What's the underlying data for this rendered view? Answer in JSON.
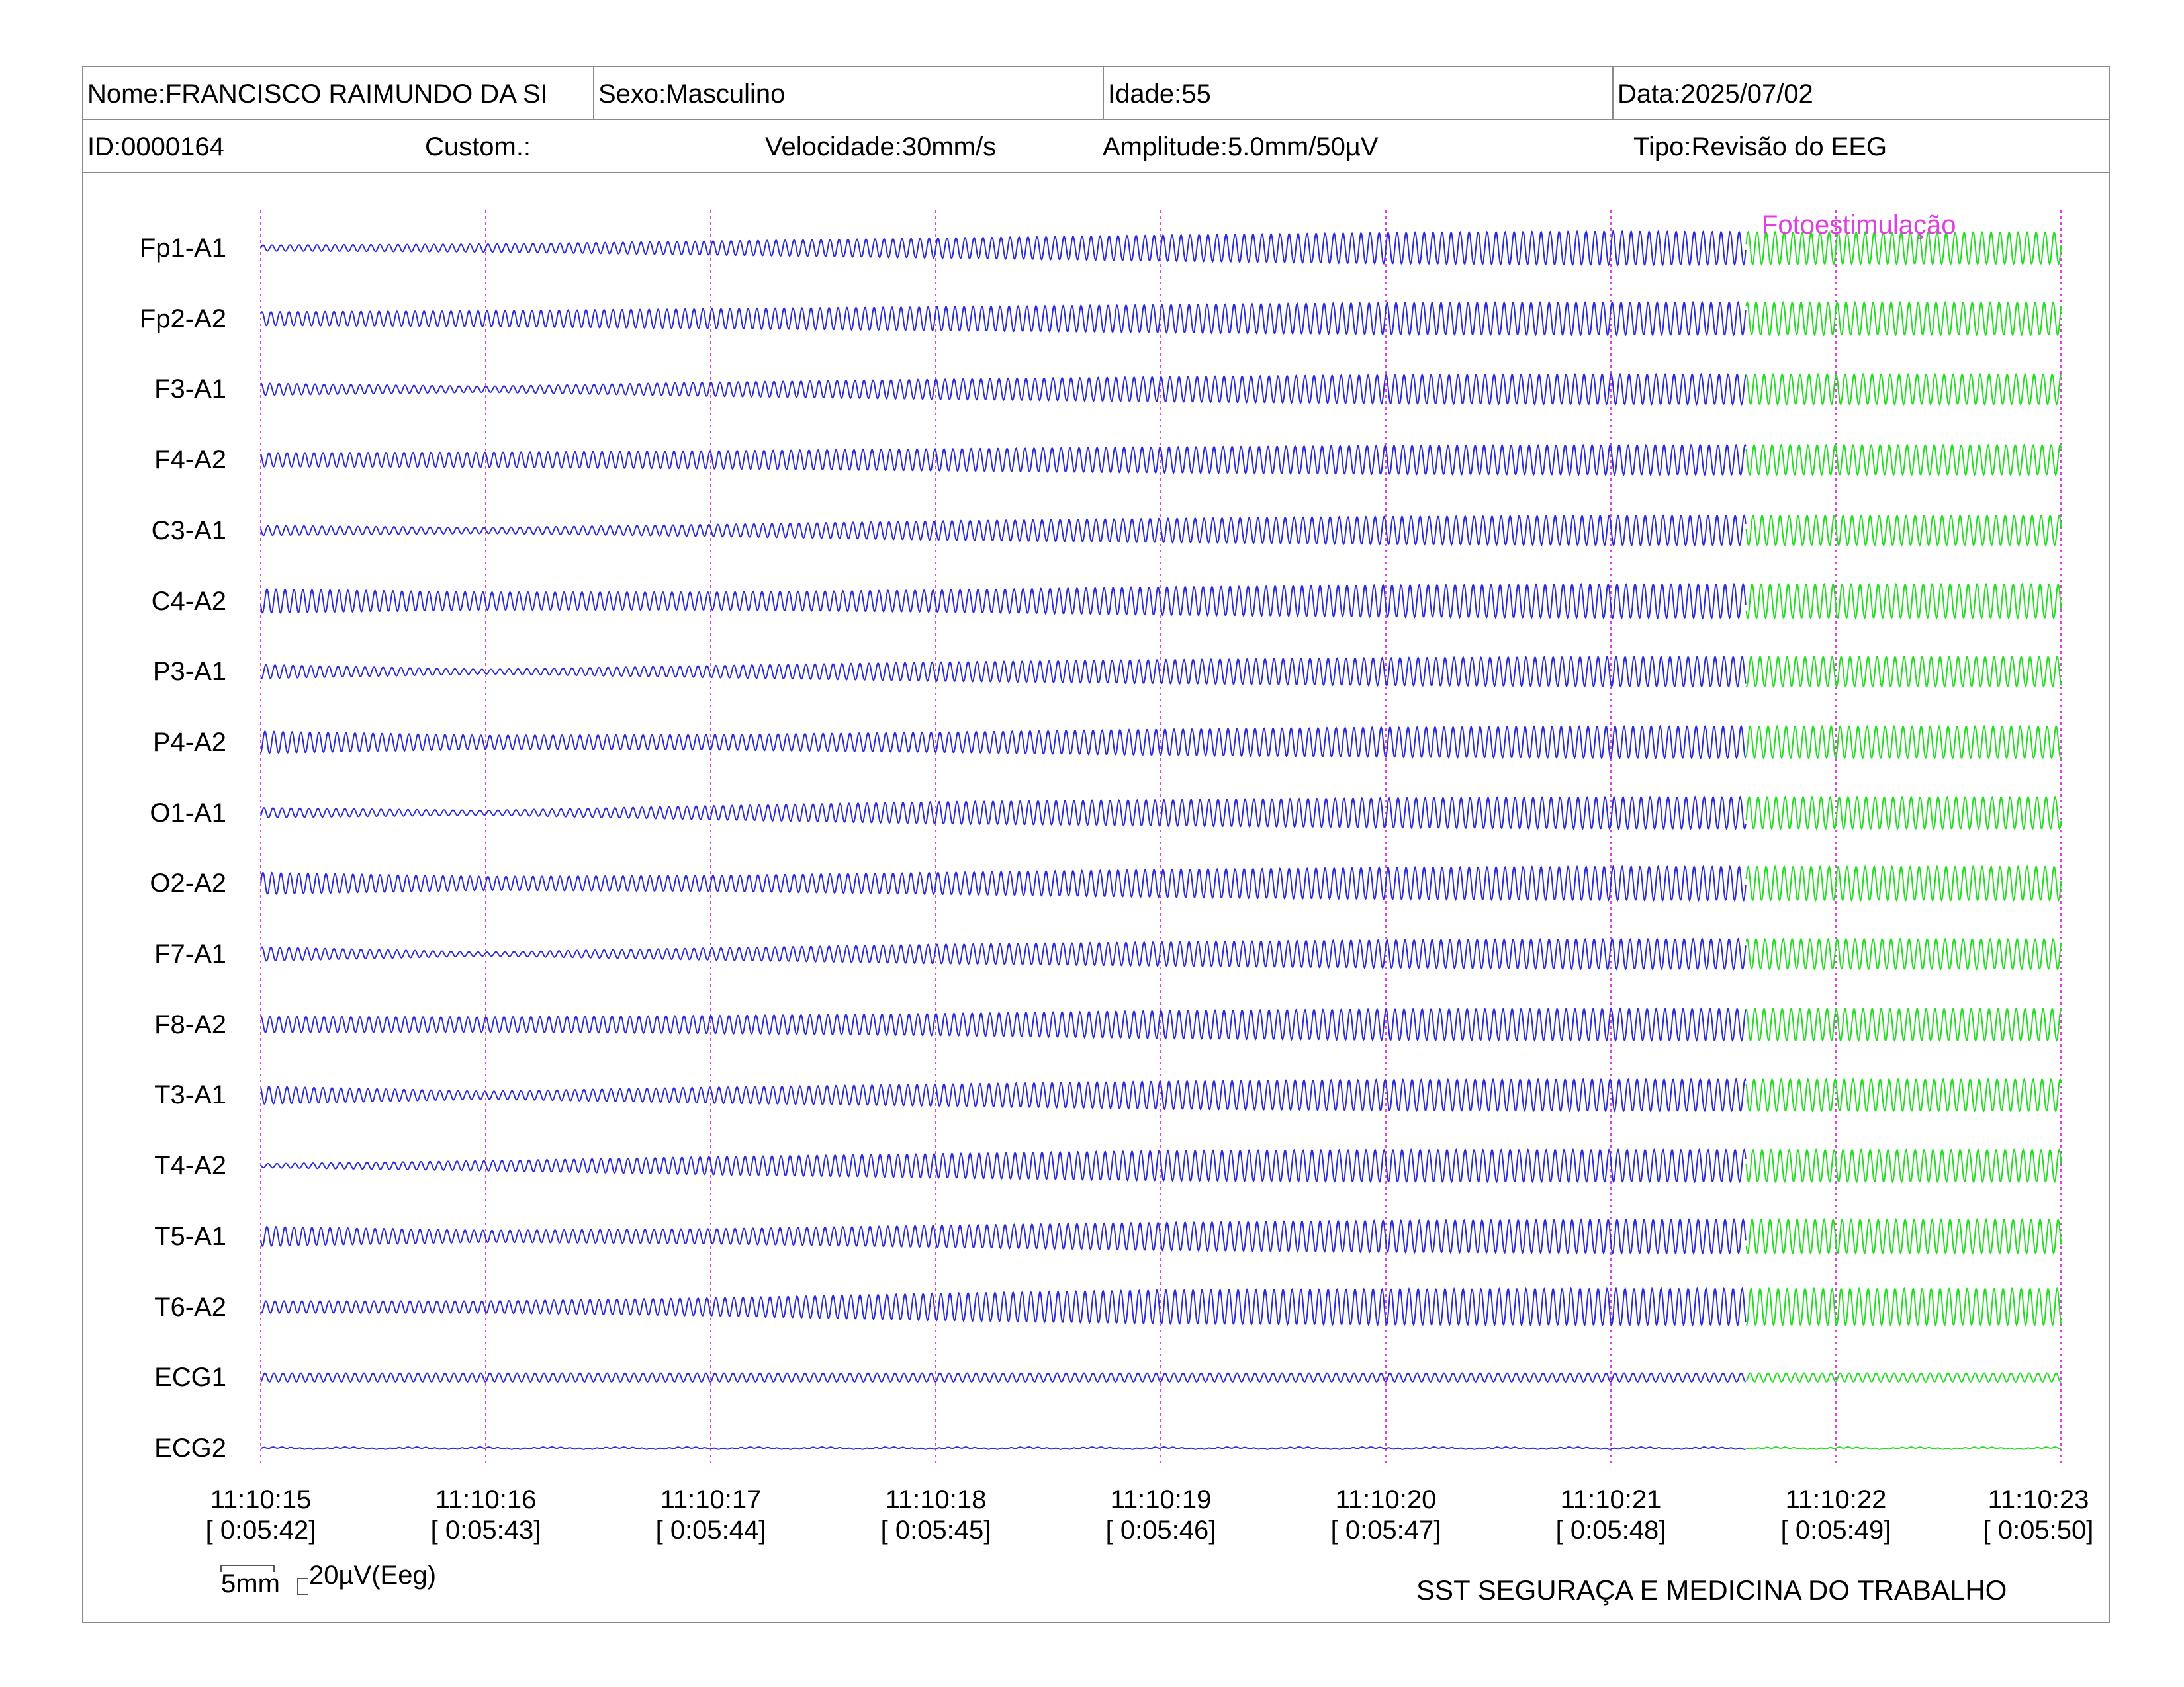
{
  "header": {
    "nome": "Nome:FRANCISCO RAIMUNDO DA SI",
    "sexo": "Sexo:Masculino",
    "idade": "Idade:55",
    "data": "Data:2025/07/02",
    "id": "ID:0000164",
    "custom": "Custom.:",
    "velocidade": "Velocidade:30mm/s",
    "amplitude": "Amplitude:5.0mm/50µV",
    "tipo": "Tipo:Revisão do EEG"
  },
  "annotation": "Fotoestimulação",
  "scale": {
    "time_label": "5mm",
    "amplitude_label": "20µV(Eeg)"
  },
  "footer": {
    "organization": "SST SEGURAÇA E MEDICINA DO TRABALHO"
  },
  "colors": {
    "trace": "#2b2bd9",
    "photic_trace": "#22dd22",
    "marker": "#e040e0",
    "border": "#8a8a8a"
  },
  "chart_data": {
    "type": "line",
    "channels": [
      "Fp1-A1",
      "Fp2-A2",
      "F3-A1",
      "F4-A2",
      "C3-A1",
      "C4-A2",
      "P3-A1",
      "P4-A2",
      "O1-A1",
      "O2-A2",
      "F7-A1",
      "F8-A2",
      "T3-A1",
      "T4-A2",
      "T5-A1",
      "T6-A2",
      "ECG1",
      "ECG2"
    ],
    "time_ticks": [
      {
        "clock": "11:10:15",
        "elapsed": "[ 0:05:42]"
      },
      {
        "clock": "11:10:16",
        "elapsed": "[ 0:05:43]"
      },
      {
        "clock": "11:10:17",
        "elapsed": "[ 0:05:44]"
      },
      {
        "clock": "11:10:18",
        "elapsed": "[ 0:05:45]"
      },
      {
        "clock": "11:10:19",
        "elapsed": "[ 0:05:46]"
      },
      {
        "clock": "11:10:20",
        "elapsed": "[ 0:05:47]"
      },
      {
        "clock": "11:10:21",
        "elapsed": "[ 0:05:48]"
      },
      {
        "clock": "11:10:22",
        "elapsed": "[ 0:05:49]"
      },
      {
        "clock": "11:10:23",
        "elapsed": "[ 0:05:50]"
      }
    ],
    "waves_per_second": 25,
    "photic_stimulation_start_s": 6.6,
    "amplitude_profile_s": [
      0,
      1,
      2,
      3,
      4,
      5,
      6,
      7,
      8.1
    ],
    "channel_amplitudes": [
      [
        0.15,
        0.2,
        0.35,
        0.5,
        0.65,
        0.78,
        0.85,
        0.8,
        0.8
      ],
      [
        0.35,
        0.4,
        0.5,
        0.6,
        0.7,
        0.8,
        0.82,
        0.82,
        0.82
      ],
      [
        0.3,
        0.15,
        0.35,
        0.5,
        0.62,
        0.72,
        0.75,
        0.75,
        0.75
      ],
      [
        0.35,
        0.38,
        0.45,
        0.55,
        0.65,
        0.72,
        0.75,
        0.75,
        0.75
      ],
      [
        0.25,
        0.15,
        0.3,
        0.48,
        0.6,
        0.7,
        0.75,
        0.75,
        0.75
      ],
      [
        0.6,
        0.45,
        0.45,
        0.55,
        0.7,
        0.8,
        0.85,
        0.85,
        0.85
      ],
      [
        0.35,
        0.12,
        0.3,
        0.48,
        0.6,
        0.7,
        0.75,
        0.75,
        0.75
      ],
      [
        0.55,
        0.35,
        0.38,
        0.5,
        0.65,
        0.75,
        0.8,
        0.8,
        0.8
      ],
      [
        0.25,
        0.12,
        0.35,
        0.55,
        0.65,
        0.75,
        0.8,
        0.8,
        0.8
      ],
      [
        0.55,
        0.35,
        0.4,
        0.55,
        0.7,
        0.8,
        0.85,
        0.85,
        0.85
      ],
      [
        0.35,
        0.1,
        0.3,
        0.48,
        0.6,
        0.7,
        0.75,
        0.75,
        0.75
      ],
      [
        0.4,
        0.38,
        0.45,
        0.55,
        0.7,
        0.78,
        0.8,
        0.8,
        0.8
      ],
      [
        0.45,
        0.2,
        0.4,
        0.55,
        0.7,
        0.78,
        0.8,
        0.8,
        0.8
      ],
      [
        0.1,
        0.25,
        0.45,
        0.6,
        0.75,
        0.8,
        0.8,
        0.8,
        0.8
      ],
      [
        0.5,
        0.3,
        0.38,
        0.55,
        0.7,
        0.8,
        0.85,
        0.85,
        0.85
      ],
      [
        0.3,
        0.3,
        0.45,
        0.68,
        0.85,
        0.9,
        0.92,
        0.92,
        0.92
      ],
      [
        0.22,
        0.22,
        0.22,
        0.22,
        0.22,
        0.22,
        0.22,
        0.22,
        0.22
      ],
      [
        0.06,
        0.06,
        0.06,
        0.06,
        0.06,
        0.06,
        0.06,
        0.06,
        0.06
      ]
    ]
  }
}
